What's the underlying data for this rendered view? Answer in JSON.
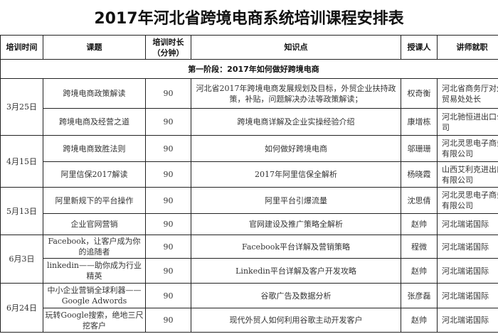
{
  "title": "2017年河北省跨境电商系统培训课程安排表",
  "headers": [
    "培训时间",
    "课题",
    "培训时长（分钟）",
    "知识点",
    "授课人",
    "讲师就职"
  ],
  "stage": "第一阶段：2017年如何做好跨境电商",
  "dates": [
    "3月25日",
    "4月15日",
    "5月13日",
    "6月3日",
    "6月24日"
  ],
  "rows": [
    {
      "topic": "跨境电商政策解读",
      "minutes": "90",
      "points": "河北省2017年跨境电商发展规划及目标，外贸企业扶持政策，补贴，问题解决办法等政策解读；",
      "teacher": "权奇衡",
      "org": "河北省商务厅对外贸易处处长"
    },
    {
      "topic": "跨境电商及经营之道",
      "minutes": "90",
      "points": "跨境电商详解及企业实操经验介绍",
      "teacher": "康增栋",
      "org": "河北驰恒进出口公司"
    },
    {
      "topic": "跨境电商致胜法则",
      "minutes": "90",
      "points": "如何做好跨境电商",
      "teacher": "邬珊珊",
      "org": "河北灵思电子商务有限公司"
    },
    {
      "topic": "阿里信保2017解读",
      "minutes": "90",
      "points": "2017年阿里信保全解析",
      "teacher": "杨晓霞",
      "org": "山西艾利克进出口有限公司"
    },
    {
      "topic": "阿里新规下的平台操作",
      "minutes": "90",
      "points": "阿里平台引爆流量",
      "teacher": "沈思倩",
      "org": "河北灵思电子商务有限公司"
    },
    {
      "topic": "企业官网营销",
      "minutes": "90",
      "points": "官网建设及推广策略全解析",
      "teacher": "赵帅",
      "org": "河北瑞诺国际"
    },
    {
      "topic": "Facebook，让客户成为你的追随者",
      "minutes": "90",
      "points": "Facebook平台详解及营销策略",
      "teacher": "程微",
      "org": "河北瑞诺国际"
    },
    {
      "topic": "linkedin——助你成为行业精英",
      "minutes": "90",
      "points": "Linkedin平台详解及客户开发攻略",
      "teacher": "赵帅",
      "org": "河北瑞诺国际"
    },
    {
      "topic": "中小企业营销全球利器——Google Adwords",
      "minutes": "90",
      "points": "谷歌广告及数据分析",
      "teacher": "张彦磊",
      "org": "河北瑞诺国际"
    },
    {
      "topic": "玩转Google搜索，绝地三尺挖客户",
      "minutes": "90",
      "points": "现代外贸人如何利用谷歌主动开发客户",
      "teacher": "赵帅",
      "org": "河北瑞诺国际"
    }
  ]
}
